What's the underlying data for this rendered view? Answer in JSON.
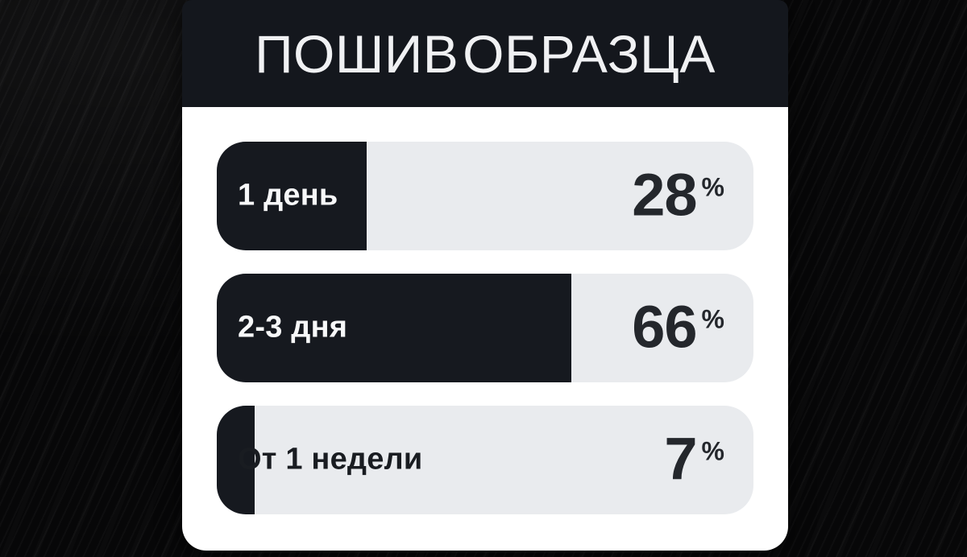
{
  "title": "ПОШИВ ОБРАЗЦА",
  "chart_data": {
    "type": "bar",
    "orientation": "horizontal",
    "title": "ПОШИВ ОБРАЗЦА",
    "categories": [
      "1 день",
      "2-3 дня",
      "От 1 недели"
    ],
    "values": [
      28,
      66,
      7
    ],
    "unit": "%",
    "xlim": [
      0,
      100
    ],
    "legend": "none",
    "grid": false
  },
  "rows": [
    {
      "label": "1 день",
      "value": "28",
      "pct": 28,
      "unit": "%",
      "label_color": "#f7f8f9"
    },
    {
      "label": "2-3 дня",
      "value": "66",
      "pct": 66,
      "unit": "%",
      "label_color": "#f7f8f9"
    },
    {
      "label": "От 1 недели",
      "value": "7",
      "pct": 7,
      "unit": "%",
      "label_color": "#191c21"
    }
  ],
  "colors": {
    "page_background": "#070708",
    "header_background": "#14171d",
    "card_background": "#ffffff",
    "bar_track": "#e9ebee",
    "bar_fill": "#16191f",
    "value_text": "#24272c",
    "title_text": "#f0f1f3"
  }
}
